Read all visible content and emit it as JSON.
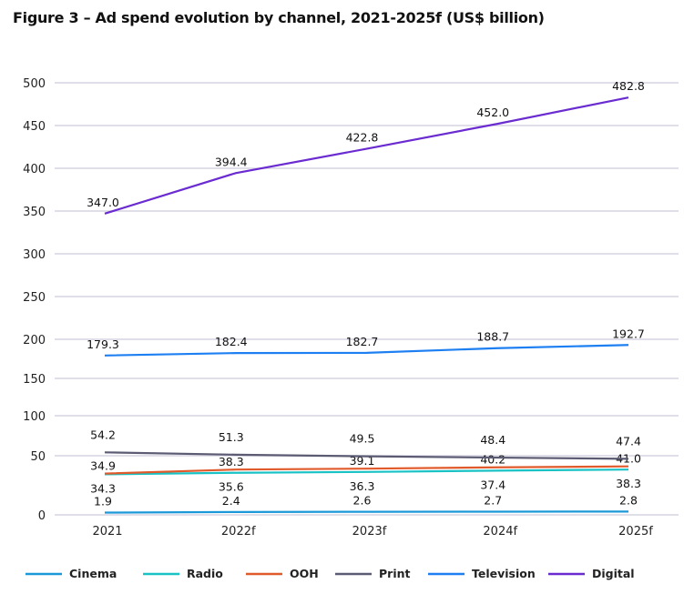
{
  "chart_data": {
    "type": "line",
    "title": "Figure 3 – Ad spend evolution by channel, 2021-2025f (US$ billion)",
    "xlabel": "",
    "ylabel": "",
    "categories": [
      "2021",
      "2022f",
      "2023f",
      "2024f",
      "2025f"
    ],
    "yticks": [
      0,
      50,
      100,
      150,
      200,
      250,
      300,
      350,
      400,
      450,
      500
    ],
    "ylim": [
      0,
      520
    ],
    "grid": true,
    "legend": "bottom",
    "series": [
      {
        "name": "Cinema",
        "color": "#1a98d8",
        "values": [
          1.9,
          2.4,
          2.6,
          2.7,
          2.8
        ],
        "labels": [
          "1.9",
          "2.4",
          "2.6",
          "2.7",
          "2.8"
        ],
        "label_pos": "above"
      },
      {
        "name": "Radio",
        "color": "#19c2c4",
        "values": [
          34.3,
          35.6,
          36.3,
          37.4,
          38.3
        ],
        "labels": [
          "34.3",
          "35.6",
          "36.3",
          "37.4",
          "38.3"
        ],
        "label_pos": "below"
      },
      {
        "name": "OOH",
        "color": "#e05a2b",
        "values": [
          34.9,
          38.3,
          39.1,
          40.2,
          41.0
        ],
        "labels": [
          "34.9",
          "38.3",
          "39.1",
          "40.2",
          "41.0"
        ],
        "label_pos": "above"
      },
      {
        "name": "Print",
        "color": "#5b5b73",
        "values": [
          54.2,
          51.3,
          49.5,
          48.4,
          47.4
        ],
        "labels": [
          "54.2",
          "51.3",
          "49.5",
          "48.4",
          "47.4"
        ],
        "label_pos": "above"
      },
      {
        "name": "Television",
        "color": "#1d7ff2",
        "values": [
          179.3,
          182.4,
          182.7,
          188.7,
          192.7
        ],
        "labels": [
          "179.3",
          "182.4",
          "182.7",
          "188.7",
          "192.7"
        ],
        "label_pos": "above"
      },
      {
        "name": "Digital",
        "color": "#6a2bd0",
        "values": [
          347.0,
          394.4,
          422.8,
          452.0,
          482.8
        ],
        "labels": [
          "347.0",
          "394.4",
          "422.8",
          "452.0",
          "482.8"
        ],
        "label_pos": "above"
      }
    ]
  }
}
